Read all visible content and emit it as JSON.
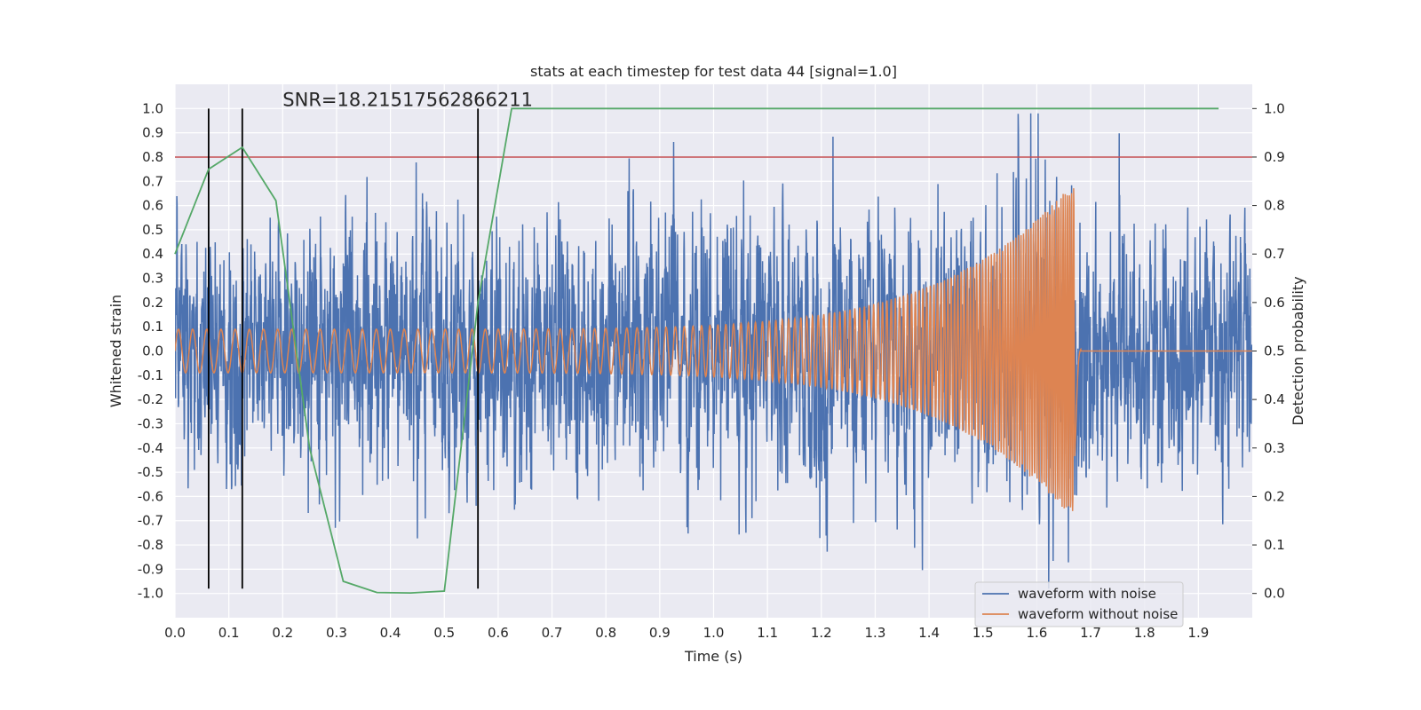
{
  "chart_data": {
    "type": "line",
    "title": "stats at each timestep for test data 44 [signal=1.0]",
    "xlabel": "Time (s)",
    "ylabel": "Whitened strain",
    "ylabel_right": "Detection probability",
    "xlim": [
      0.0,
      2.0
    ],
    "ylim": [
      -1.1,
      1.1
    ],
    "ylim_right": [
      -0.05,
      1.05
    ],
    "xticks": [
      "0.0",
      "0.1",
      "0.2",
      "0.3",
      "0.4",
      "0.5",
      "0.6",
      "0.7",
      "0.8",
      "0.9",
      "1.0",
      "1.1",
      "1.2",
      "1.3",
      "1.4",
      "1.5",
      "1.6",
      "1.7",
      "1.8",
      "1.9"
    ],
    "yticks": [
      "1.0",
      "0.9",
      "0.8",
      "0.7",
      "0.6",
      "0.5",
      "0.4",
      "0.3",
      "0.2",
      "0.1",
      "0.0",
      "-0.1",
      "-0.2",
      "-0.3",
      "-0.4",
      "-0.5",
      "-0.6",
      "-0.7",
      "-0.8",
      "-0.9",
      "-1.0"
    ],
    "yticks_right": [
      "1.0",
      "0.9",
      "0.8",
      "0.7",
      "0.6",
      "0.5",
      "0.4",
      "0.3",
      "0.2",
      "0.1",
      "0.0"
    ],
    "annotation": "SNR=18.21517562866211",
    "threshold": 0.8,
    "vlines": [
      0.0625,
      0.125,
      0.5625
    ],
    "vline_range": [
      -0.98,
      1.0
    ],
    "legend": {
      "location": "lower-right",
      "entries": [
        "waveform with noise",
        "waveform without noise"
      ]
    },
    "series": [
      {
        "name": "waveform with noise",
        "color": "#4c72b0",
        "kind": "noise",
        "sample_rate": 2048,
        "noise_amplitude": 0.26,
        "spike_max": 0.98
      },
      {
        "name": "waveform without noise",
        "color": "#dd8452",
        "kind": "chirp",
        "base_amplitude": 0.09,
        "peak_amplitude": 0.7,
        "merger_time": 1.67,
        "start_frequency": 38,
        "end_frequency": 260
      },
      {
        "name": "detection probability",
        "color": "#55a868",
        "axis": "right",
        "x": [
          0.0,
          0.0625,
          0.125,
          0.1875,
          0.25,
          0.3125,
          0.375,
          0.4375,
          0.5,
          0.5625,
          0.625,
          0.6875,
          0.75,
          0.8125,
          0.875,
          0.9375,
          1.0,
          1.0625,
          1.125,
          1.1875,
          1.25,
          1.3125,
          1.375,
          1.4375,
          1.5,
          1.5625,
          1.625,
          1.6875,
          1.75,
          1.8125,
          1.875,
          1.9375
        ],
        "values": [
          0.7,
          0.875,
          0.92,
          0.81,
          0.3,
          0.025,
          0.002,
          0.001,
          0.005,
          0.6,
          1.0,
          1.0,
          1.0,
          1.0,
          1.0,
          1.0,
          1.0,
          1.0,
          1.0,
          1.0,
          1.0,
          1.0,
          1.0,
          1.0,
          1.0,
          1.0,
          1.0,
          1.0,
          1.0,
          1.0,
          1.0,
          1.0
        ]
      }
    ],
    "colors": {
      "background": "#eaeaf2",
      "grid": "#ffffff",
      "threshold": "#c44e52",
      "vline": "#000000"
    }
  }
}
